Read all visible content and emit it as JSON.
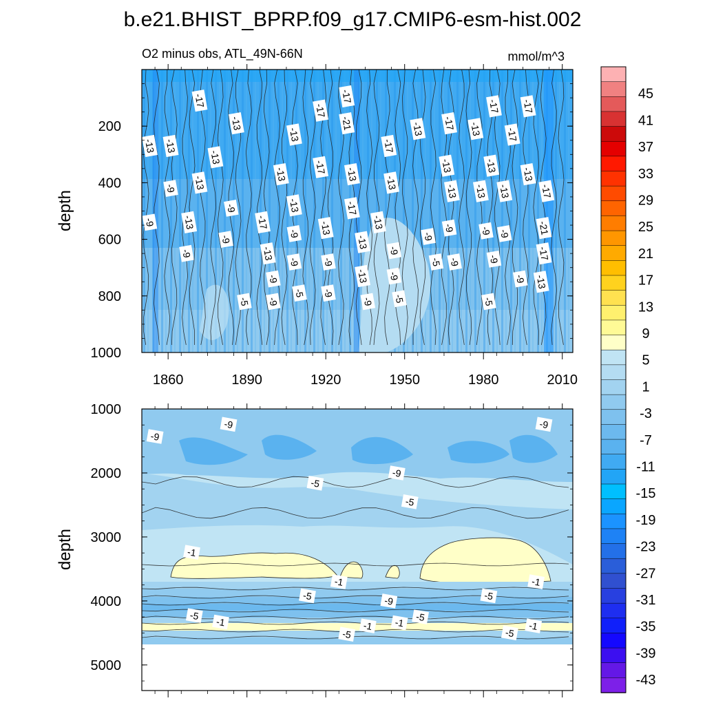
{
  "figure": {
    "title": "b.e21.BHIST_BPRP.f09_g17.CMIP6-esm-hist.002",
    "left_subtitle": "O2 minus obs, ATL_49N-66N",
    "right_subtitle": "mmol/m^3"
  },
  "chart_data": [
    {
      "type": "heatmap",
      "panel": "upper",
      "ylabel": "depth",
      "xlim": [
        1850,
        2014
      ],
      "ylim": [
        0,
        1000
      ],
      "y_inverted": true,
      "x_ticks": [
        1860,
        1890,
        1920,
        1950,
        1980,
        2010
      ],
      "y_ticks": [
        200,
        400,
        600,
        800,
        1000
      ],
      "contour_labels": [
        {
          "x": 1872,
          "y": 110,
          "text": "-17"
        },
        {
          "x": 1928,
          "y": 95,
          "text": "-17"
        },
        {
          "x": 1918,
          "y": 145,
          "text": "-17"
        },
        {
          "x": 1984,
          "y": 130,
          "text": "-17"
        },
        {
          "x": 1997,
          "y": 130,
          "text": "-17"
        },
        {
          "x": 1967,
          "y": 190,
          "text": "-17"
        },
        {
          "x": 1853,
          "y": 270,
          "text": "-13"
        },
        {
          "x": 1861,
          "y": 270,
          "text": "-13"
        },
        {
          "x": 1886,
          "y": 190,
          "text": "-13"
        },
        {
          "x": 1928,
          "y": 190,
          "text": "-21"
        },
        {
          "x": 1955,
          "y": 210,
          "text": "-13"
        },
        {
          "x": 1977,
          "y": 210,
          "text": "-13"
        },
        {
          "x": 1991,
          "y": 230,
          "text": "-17"
        },
        {
          "x": 1878,
          "y": 310,
          "text": "-13"
        },
        {
          "x": 1908,
          "y": 230,
          "text": "-13"
        },
        {
          "x": 1944,
          "y": 270,
          "text": "-17"
        },
        {
          "x": 1966,
          "y": 340,
          "text": "-13"
        },
        {
          "x": 1983,
          "y": 340,
          "text": "-13"
        },
        {
          "x": 1918,
          "y": 345,
          "text": "-17"
        },
        {
          "x": 1930,
          "y": 370,
          "text": "-13"
        },
        {
          "x": 1903,
          "y": 370,
          "text": "-13"
        },
        {
          "x": 1997,
          "y": 370,
          "text": "-13"
        },
        {
          "x": 1872,
          "y": 400,
          "text": "-13"
        },
        {
          "x": 1945,
          "y": 400,
          "text": "-13"
        },
        {
          "x": 1861,
          "y": 420,
          "text": "-9"
        },
        {
          "x": 1968,
          "y": 430,
          "text": "-13"
        },
        {
          "x": 1979,
          "y": 430,
          "text": "-13"
        },
        {
          "x": 1988,
          "y": 430,
          "text": "-13"
        },
        {
          "x": 2004,
          "y": 430,
          "text": "-17"
        },
        {
          "x": 1908,
          "y": 480,
          "text": "-13"
        },
        {
          "x": 1930,
          "y": 490,
          "text": "-17"
        },
        {
          "x": 1884,
          "y": 490,
          "text": "-9"
        },
        {
          "x": 1853,
          "y": 540,
          "text": "-9"
        },
        {
          "x": 1868,
          "y": 540,
          "text": "-13"
        },
        {
          "x": 1896,
          "y": 540,
          "text": "-17"
        },
        {
          "x": 1940,
          "y": 540,
          "text": "-13"
        },
        {
          "x": 1920,
          "y": 560,
          "text": "-13"
        },
        {
          "x": 1908,
          "y": 580,
          "text": "-9"
        },
        {
          "x": 1981,
          "y": 570,
          "text": "-9"
        },
        {
          "x": 1988,
          "y": 580,
          "text": "-9"
        },
        {
          "x": 1967,
          "y": 560,
          "text": "-9"
        },
        {
          "x": 1959,
          "y": 590,
          "text": "-9"
        },
        {
          "x": 2003,
          "y": 560,
          "text": "-21"
        },
        {
          "x": 1882,
          "y": 600,
          "text": "-9"
        },
        {
          "x": 1934,
          "y": 610,
          "text": "-13"
        },
        {
          "x": 1867,
          "y": 650,
          "text": "-9"
        },
        {
          "x": 1898,
          "y": 650,
          "text": "-13"
        },
        {
          "x": 1946,
          "y": 640,
          "text": "-9"
        },
        {
          "x": 2003,
          "y": 650,
          "text": "-17"
        },
        {
          "x": 1908,
          "y": 680,
          "text": "-9"
        },
        {
          "x": 1921,
          "y": 680,
          "text": "-9"
        },
        {
          "x": 1962,
          "y": 680,
          "text": "-5"
        },
        {
          "x": 1969,
          "y": 680,
          "text": "-9"
        },
        {
          "x": 1984,
          "y": 670,
          "text": "-9"
        },
        {
          "x": 1934,
          "y": 730,
          "text": "-13"
        },
        {
          "x": 1946,
          "y": 730,
          "text": "-9"
        },
        {
          "x": 1900,
          "y": 740,
          "text": "-9"
        },
        {
          "x": 1994,
          "y": 740,
          "text": "-9"
        },
        {
          "x": 2002,
          "y": 750,
          "text": "-13"
        },
        {
          "x": 1910,
          "y": 790,
          "text": "-5"
        },
        {
          "x": 1921,
          "y": 790,
          "text": "-9"
        },
        {
          "x": 1889,
          "y": 820,
          "text": "-5"
        },
        {
          "x": 1900,
          "y": 820,
          "text": "-9"
        },
        {
          "x": 1936,
          "y": 820,
          "text": "-9"
        },
        {
          "x": 1948,
          "y": 810,
          "text": "-5"
        },
        {
          "x": 1982,
          "y": 820,
          "text": "-5"
        }
      ]
    },
    {
      "type": "heatmap",
      "panel": "lower",
      "ylabel": "depth",
      "xlim": [
        1850,
        2014
      ],
      "ylim": [
        1000,
        5400
      ],
      "y_inverted": true,
      "x_ticks": [
        1860,
        1890,
        1920,
        1950,
        1980,
        2010
      ],
      "y_ticks": [
        1000,
        2000,
        3000,
        4000,
        5000
      ],
      "seafloor_depth": 4640,
      "contour_labels": [
        {
          "x": 1855,
          "y": 1430,
          "text": "-9"
        },
        {
          "x": 1883,
          "y": 1240,
          "text": "-9"
        },
        {
          "x": 2003,
          "y": 1240,
          "text": "-9"
        },
        {
          "x": 1947,
          "y": 2000,
          "text": "-9"
        },
        {
          "x": 1916,
          "y": 2160,
          "text": "-5"
        },
        {
          "x": 1952,
          "y": 2450,
          "text": "-5"
        },
        {
          "x": 1869,
          "y": 3240,
          "text": "-1"
        },
        {
          "x": 1925,
          "y": 3700,
          "text": "-1"
        },
        {
          "x": 2000,
          "y": 3700,
          "text": "-1"
        },
        {
          "x": 1913,
          "y": 3920,
          "text": "-5"
        },
        {
          "x": 1944,
          "y": 4000,
          "text": "-9"
        },
        {
          "x": 1982,
          "y": 3920,
          "text": "-5"
        },
        {
          "x": 1870,
          "y": 4230,
          "text": "-5"
        },
        {
          "x": 1880,
          "y": 4330,
          "text": "-1"
        },
        {
          "x": 1956,
          "y": 4250,
          "text": "-5"
        },
        {
          "x": 1948,
          "y": 4340,
          "text": "-1"
        },
        {
          "x": 1936,
          "y": 4390,
          "text": "-1"
        },
        {
          "x": 1928,
          "y": 4520,
          "text": "-5"
        },
        {
          "x": 1999,
          "y": 4390,
          "text": "-1"
        },
        {
          "x": 1990,
          "y": 4500,
          "text": "-5"
        }
      ]
    }
  ],
  "colorbar": {
    "labels": [
      "45",
      "41",
      "37",
      "33",
      "29",
      "25",
      "21",
      "17",
      "13",
      "9",
      "5",
      "1",
      "-3",
      "-7",
      "-11",
      "-15",
      "-19",
      "-23",
      "-27",
      "-31",
      "-35",
      "-39",
      "-43"
    ],
    "colors": [
      "#fdb1b3",
      "#f08181",
      "#e45a5a",
      "#d83232",
      "#cc0a0a",
      "#e40000",
      "#ff1900",
      "#ff3200",
      "#ff4b00",
      "#ff6400",
      "#ff7d00",
      "#ff9600",
      "#ffaa00",
      "#ffbe00",
      "#ffd21e",
      "#ffe150",
      "#fff06e",
      "#fffa96",
      "#ffffc8",
      "#c0e4f4",
      "#b4dcf2",
      "#a2d3f0",
      "#90caef",
      "#7ec1ee",
      "#6cb9ee",
      "#5ab2ef",
      "#40aaf2",
      "#22a5f6",
      "#00bfff",
      "#0aa6ff",
      "#1b93ff",
      "#1e82f5",
      "#2370e8",
      "#2a5ed9",
      "#3050d0",
      "#2840e0",
      "#1e2ef0",
      "#1020fa",
      "#1408ff",
      "#3c0ff0",
      "#6418e6",
      "#7d20e8"
    ]
  }
}
